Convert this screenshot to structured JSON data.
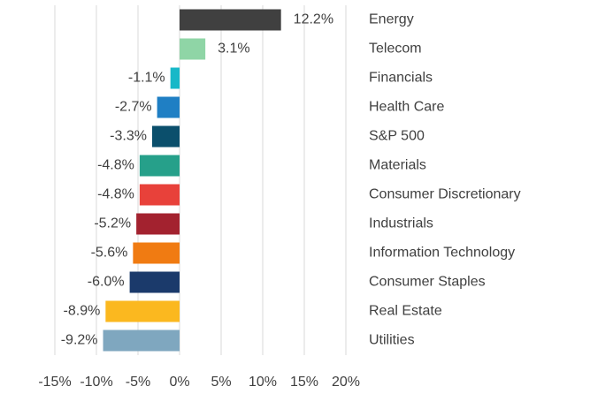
{
  "chart_data": {
    "type": "barh",
    "categories": [
      "Energy",
      "Telecom",
      "Financials",
      "Health Care",
      "S&P 500",
      "Materials",
      "Consumer Discretionary",
      "Industrials",
      "Information Technology",
      "Consumer Staples",
      "Real Estate",
      "Utilities"
    ],
    "values": [
      12.2,
      3.1,
      -1.1,
      -2.7,
      -3.3,
      -4.8,
      -4.8,
      -5.2,
      -5.6,
      -6.0,
      -8.9,
      -9.2
    ],
    "value_labels": [
      "12.2%",
      "3.1%",
      "-1.1%",
      "-2.7%",
      "-3.3%",
      "-4.8%",
      "-4.8%",
      "-5.2%",
      "-5.6%",
      "-6.0%",
      "-8.9%",
      "-9.2%"
    ],
    "colors": [
      "#404040",
      "#8fd5a6",
      "#17b8c8",
      "#1f7fc4",
      "#0b4f6c",
      "#26a08a",
      "#e8413a",
      "#a3222f",
      "#f07b12",
      "#1b3a6b",
      "#fbb81f",
      "#7fa7bf"
    ],
    "xlim": [
      -15,
      20
    ],
    "xticks": [
      {
        "value": -15,
        "label": "-15%"
      },
      {
        "value": -10,
        "label": "-10%"
      },
      {
        "value": -5,
        "label": "-5%"
      },
      {
        "value": 0,
        "label": "0%"
      },
      {
        "value": 5,
        "label": "5%"
      },
      {
        "value": 10,
        "label": "10%"
      },
      {
        "value": 15,
        "label": "15%"
      },
      {
        "value": 20,
        "label": "20%"
      }
    ],
    "grid": true
  }
}
